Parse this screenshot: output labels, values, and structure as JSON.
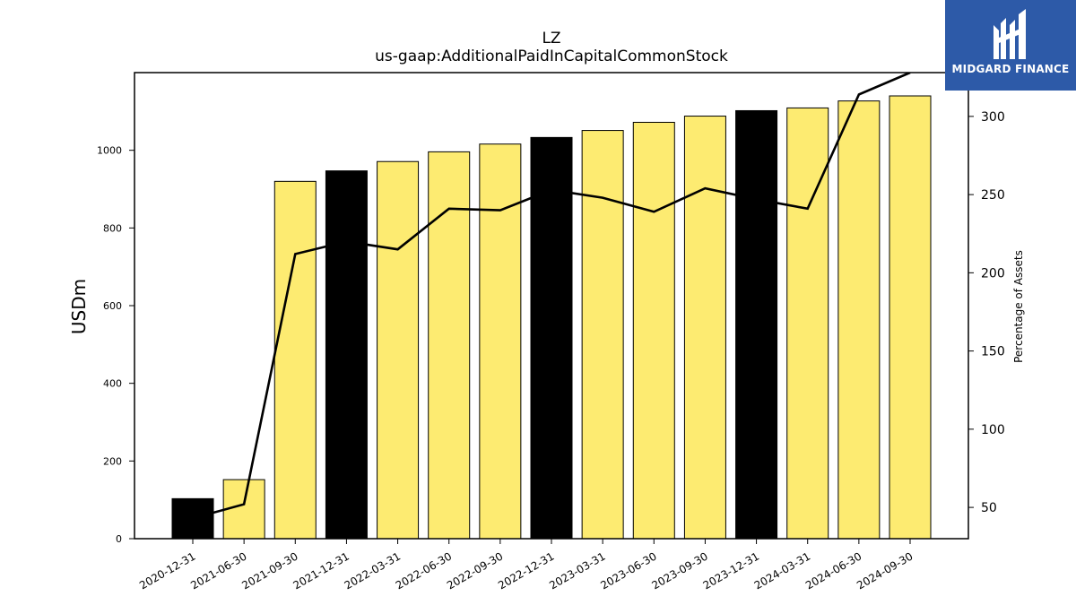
{
  "chart_data": {
    "type": "bar",
    "title": "LZ",
    "subtitle": "us-gaap:AdditionalPaidInCapitalCommonStock",
    "ylabel": "USDm",
    "y2label": "Percentage of Assets",
    "categories": [
      "2020-12-31",
      "2021-06-30",
      "2021-09-30",
      "2021-12-31",
      "2022-03-31",
      "2022-06-30",
      "2022-09-30",
      "2022-12-31",
      "2023-03-31",
      "2023-06-30",
      "2023-09-30",
      "2023-12-31",
      "2024-03-31",
      "2024-06-30",
      "2024-09-30"
    ],
    "series": [
      {
        "type": "bar",
        "values": [
          103,
          152,
          920,
          947,
          971,
          996,
          1016,
          1033,
          1051,
          1072,
          1088,
          1102,
          1109,
          1127,
          1140
        ],
        "colors": [
          "#000000",
          "#fdeb71",
          "#fdeb71",
          "#000000",
          "#fdeb71",
          "#fdeb71",
          "#fdeb71",
          "#000000",
          "#fdeb71",
          "#fdeb71",
          "#fdeb71",
          "#000000",
          "#fdeb71",
          "#fdeb71",
          "#fdeb71"
        ]
      },
      {
        "type": "line",
        "axis": "right",
        "values": [
          43,
          52,
          212,
          220,
          215,
          241,
          240,
          253,
          248,
          239,
          254,
          247,
          241,
          314,
          328
        ],
        "color": "#000000"
      }
    ],
    "ylim": [
      0,
      1200
    ],
    "y2lim": [
      30,
      328
    ],
    "yticks": [
      0,
      200,
      400,
      600,
      800,
      1000
    ],
    "y2ticks": [
      50,
      100,
      150,
      200,
      250,
      300
    ],
    "grid": false
  },
  "logo": {
    "text": "MIDGARD FINANCE",
    "bg": "#2d5aa8"
  }
}
